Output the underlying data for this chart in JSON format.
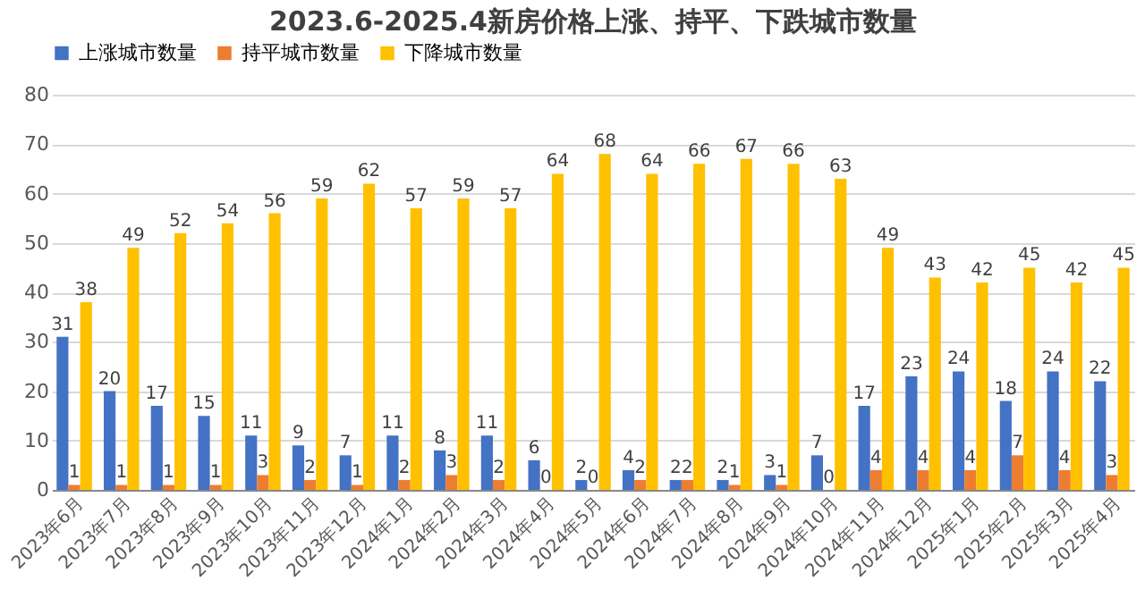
{
  "chart_data": {
    "type": "bar",
    "title": "2023.6-2025.4新房价格上涨、持平、下跌城市数量",
    "categories": [
      "2023年6月",
      "2023年7月",
      "2023年8月",
      "2023年9月",
      "2023年10月",
      "2023年11月",
      "2023年12月",
      "2024年1月",
      "2024年2月",
      "2024年3月",
      "2024年4月",
      "2024年5月",
      "2024年6月",
      "2024年7月",
      "2024年8月",
      "2024年9月",
      "2024年10月",
      "2024年11月",
      "2024年12月",
      "2025年1月",
      "2025年2月",
      "2025年3月",
      "2025年4月"
    ],
    "series": [
      {
        "name": "上涨城市数量",
        "color": "#4472c4",
        "values": [
          31,
          20,
          17,
          15,
          11,
          9,
          7,
          11,
          8,
          11,
          6,
          2,
          4,
          2,
          2,
          3,
          7,
          17,
          23,
          24,
          18,
          24,
          22
        ]
      },
      {
        "name": "持平城市数量",
        "color": "#ed7d31",
        "values": [
          1,
          1,
          1,
          1,
          3,
          2,
          1,
          2,
          3,
          2,
          0,
          0,
          2,
          2,
          1,
          1,
          0,
          4,
          4,
          4,
          7,
          4,
          3
        ]
      },
      {
        "name": "下降城市数量",
        "color": "#ffc000",
        "values": [
          38,
          49,
          52,
          54,
          56,
          59,
          62,
          57,
          59,
          57,
          64,
          68,
          64,
          66,
          67,
          66,
          63,
          49,
          43,
          42,
          45,
          42,
          45
        ]
      }
    ],
    "ylim": [
      0,
      80
    ],
    "yticks": [
      0,
      10,
      20,
      30,
      40,
      50,
      60,
      70,
      80
    ],
    "grid": "y",
    "legend": "top",
    "data_labels": true
  }
}
